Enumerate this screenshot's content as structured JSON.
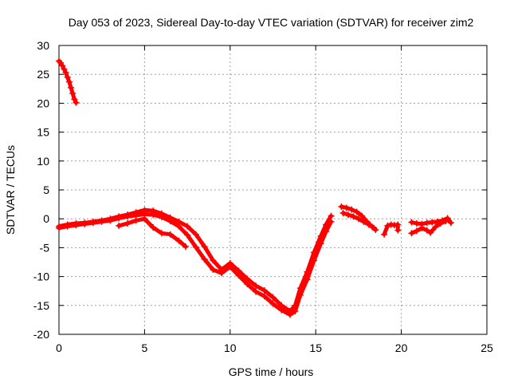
{
  "chart_data": {
    "type": "scatter",
    "title": "Day 053 of 2023, Sidereal Day-to-day VTEC variation (SDTVAR) for receiver zim2",
    "xlabel": "GPS time / hours",
    "ylabel": "SDTVAR / TECUs",
    "xlim": [
      0,
      25
    ],
    "ylim": [
      -20,
      30
    ],
    "x_ticks": [
      0,
      5,
      10,
      15,
      20,
      25
    ],
    "y_ticks": [
      -20,
      -15,
      -10,
      -5,
      0,
      5,
      10,
      15,
      20,
      25,
      30
    ],
    "grid": true,
    "legend": "none",
    "series": [
      {
        "name": "early-decline",
        "color": "#ff0000",
        "marker": "+",
        "points": [
          [
            0.0,
            27.3
          ],
          [
            0.1,
            27.0
          ],
          [
            0.2,
            26.5
          ],
          [
            0.3,
            25.9
          ],
          [
            0.4,
            25.3
          ],
          [
            0.5,
            24.5
          ],
          [
            0.6,
            23.7
          ],
          [
            0.7,
            22.7
          ],
          [
            0.8,
            21.7
          ],
          [
            0.9,
            20.7
          ],
          [
            1.0,
            20.1
          ]
        ]
      },
      {
        "name": "main-arc-a",
        "color": "#ff0000",
        "marker": "+",
        "points": [
          [
            0.0,
            -1.3
          ],
          [
            0.5,
            -1.0
          ],
          [
            1.0,
            -0.8
          ],
          [
            1.5,
            -0.7
          ],
          [
            2.0,
            -0.5
          ],
          [
            2.5,
            -0.3
          ],
          [
            3.0,
            0.0
          ],
          [
            3.5,
            0.4
          ],
          [
            4.0,
            0.7
          ],
          [
            4.5,
            1.1
          ],
          [
            5.0,
            1.5
          ],
          [
            5.5,
            1.4
          ],
          [
            6.0,
            0.9
          ],
          [
            6.5,
            0.2
          ],
          [
            7.0,
            -0.5
          ],
          [
            7.5,
            -1.3
          ],
          [
            8.0,
            -2.7
          ],
          [
            8.5,
            -4.8
          ],
          [
            9.0,
            -7.2
          ],
          [
            9.5,
            -8.8
          ],
          [
            10.0,
            -7.7
          ],
          [
            10.5,
            -9.0
          ],
          [
            11.0,
            -10.4
          ],
          [
            11.5,
            -11.6
          ],
          [
            12.0,
            -12.4
          ],
          [
            12.5,
            -13.6
          ],
          [
            13.0,
            -15.0
          ],
          [
            13.5,
            -16.0
          ],
          [
            13.8,
            -15.0
          ],
          [
            14.1,
            -12.0
          ],
          [
            14.5,
            -9.2
          ],
          [
            14.9,
            -5.8
          ],
          [
            15.3,
            -3.0
          ],
          [
            15.6,
            -1.0
          ],
          [
            15.9,
            0.5
          ]
        ]
      },
      {
        "name": "main-arc-b",
        "color": "#ff0000",
        "marker": "+",
        "points": [
          [
            0.0,
            -1.6
          ],
          [
            0.5,
            -1.3
          ],
          [
            1.0,
            -1.1
          ],
          [
            1.5,
            -0.9
          ],
          [
            2.0,
            -0.7
          ],
          [
            2.5,
            -0.5
          ],
          [
            3.0,
            -0.3
          ],
          [
            3.5,
            0.1
          ],
          [
            4.0,
            0.4
          ],
          [
            4.5,
            0.6
          ],
          [
            5.0,
            0.8
          ],
          [
            5.5,
            0.7
          ],
          [
            6.0,
            0.3
          ],
          [
            6.5,
            -0.4
          ],
          [
            7.0,
            -1.3
          ],
          [
            7.5,
            -2.8
          ],
          [
            8.0,
            -4.9
          ],
          [
            8.5,
            -7.0
          ],
          [
            9.0,
            -8.8
          ],
          [
            9.5,
            -9.4
          ],
          [
            10.0,
            -8.3
          ],
          [
            10.5,
            -9.8
          ],
          [
            11.0,
            -11.3
          ],
          [
            11.5,
            -12.6
          ],
          [
            12.0,
            -13.4
          ],
          [
            12.5,
            -14.7
          ],
          [
            13.0,
            -15.8
          ],
          [
            13.5,
            -16.6
          ],
          [
            13.8,
            -16.0
          ],
          [
            14.1,
            -13.2
          ],
          [
            14.5,
            -10.5
          ],
          [
            14.9,
            -7.2
          ],
          [
            15.3,
            -4.3
          ],
          [
            15.6,
            -2.2
          ],
          [
            15.9,
            -0.5
          ]
        ]
      },
      {
        "name": "midday-branch",
        "color": "#ff0000",
        "marker": "+",
        "points": [
          [
            3.5,
            -1.2
          ],
          [
            4.0,
            -0.8
          ],
          [
            4.5,
            -0.3
          ],
          [
            5.0,
            0.0
          ],
          [
            5.5,
            -1.5
          ],
          [
            6.0,
            -2.5
          ],
          [
            6.5,
            -2.7
          ],
          [
            7.0,
            -3.8
          ],
          [
            7.4,
            -4.8
          ]
        ]
      },
      {
        "name": "evening-a",
        "color": "#ff0000",
        "marker": "+",
        "points": [
          [
            16.5,
            2.1
          ],
          [
            16.8,
            1.9
          ],
          [
            17.1,
            1.6
          ],
          [
            17.4,
            1.2
          ],
          [
            17.7,
            0.5
          ],
          [
            18.0,
            -0.5
          ],
          [
            18.3,
            -1.4
          ],
          [
            18.5,
            -1.9
          ]
        ]
      },
      {
        "name": "evening-b",
        "color": "#ff0000",
        "marker": "+",
        "points": [
          [
            16.6,
            1.0
          ],
          [
            16.9,
            0.7
          ],
          [
            17.2,
            0.4
          ],
          [
            17.5,
            0.0
          ],
          [
            17.8,
            -0.5
          ],
          [
            18.1,
            -1.0
          ],
          [
            18.4,
            -1.6
          ]
        ]
      },
      {
        "name": "late-cluster-1",
        "color": "#ff0000",
        "marker": "+",
        "points": [
          [
            19.0,
            -2.7
          ],
          [
            19.2,
            -1.2
          ],
          [
            19.4,
            -1.0
          ],
          [
            19.6,
            -1.1
          ],
          [
            19.8,
            -1.0
          ],
          [
            19.8,
            -2.0
          ]
        ]
      },
      {
        "name": "late-cluster-2a",
        "color": "#ff0000",
        "marker": "+",
        "points": [
          [
            20.6,
            -0.6
          ],
          [
            20.9,
            -0.8
          ],
          [
            21.2,
            -0.9
          ],
          [
            21.5,
            -0.7
          ],
          [
            21.8,
            -0.6
          ],
          [
            22.1,
            -0.5
          ],
          [
            22.4,
            -0.3
          ],
          [
            22.7,
            0.1
          ],
          [
            22.9,
            -0.7
          ]
        ]
      },
      {
        "name": "late-cluster-2b",
        "color": "#ff0000",
        "marker": "+",
        "points": [
          [
            20.6,
            -2.5
          ],
          [
            20.9,
            -2.1
          ],
          [
            21.2,
            -1.6
          ],
          [
            21.5,
            -2.0
          ],
          [
            21.7,
            -2.4
          ],
          [
            22.0,
            -1.4
          ],
          [
            22.3,
            -0.8
          ],
          [
            22.6,
            -0.4
          ]
        ]
      }
    ]
  }
}
